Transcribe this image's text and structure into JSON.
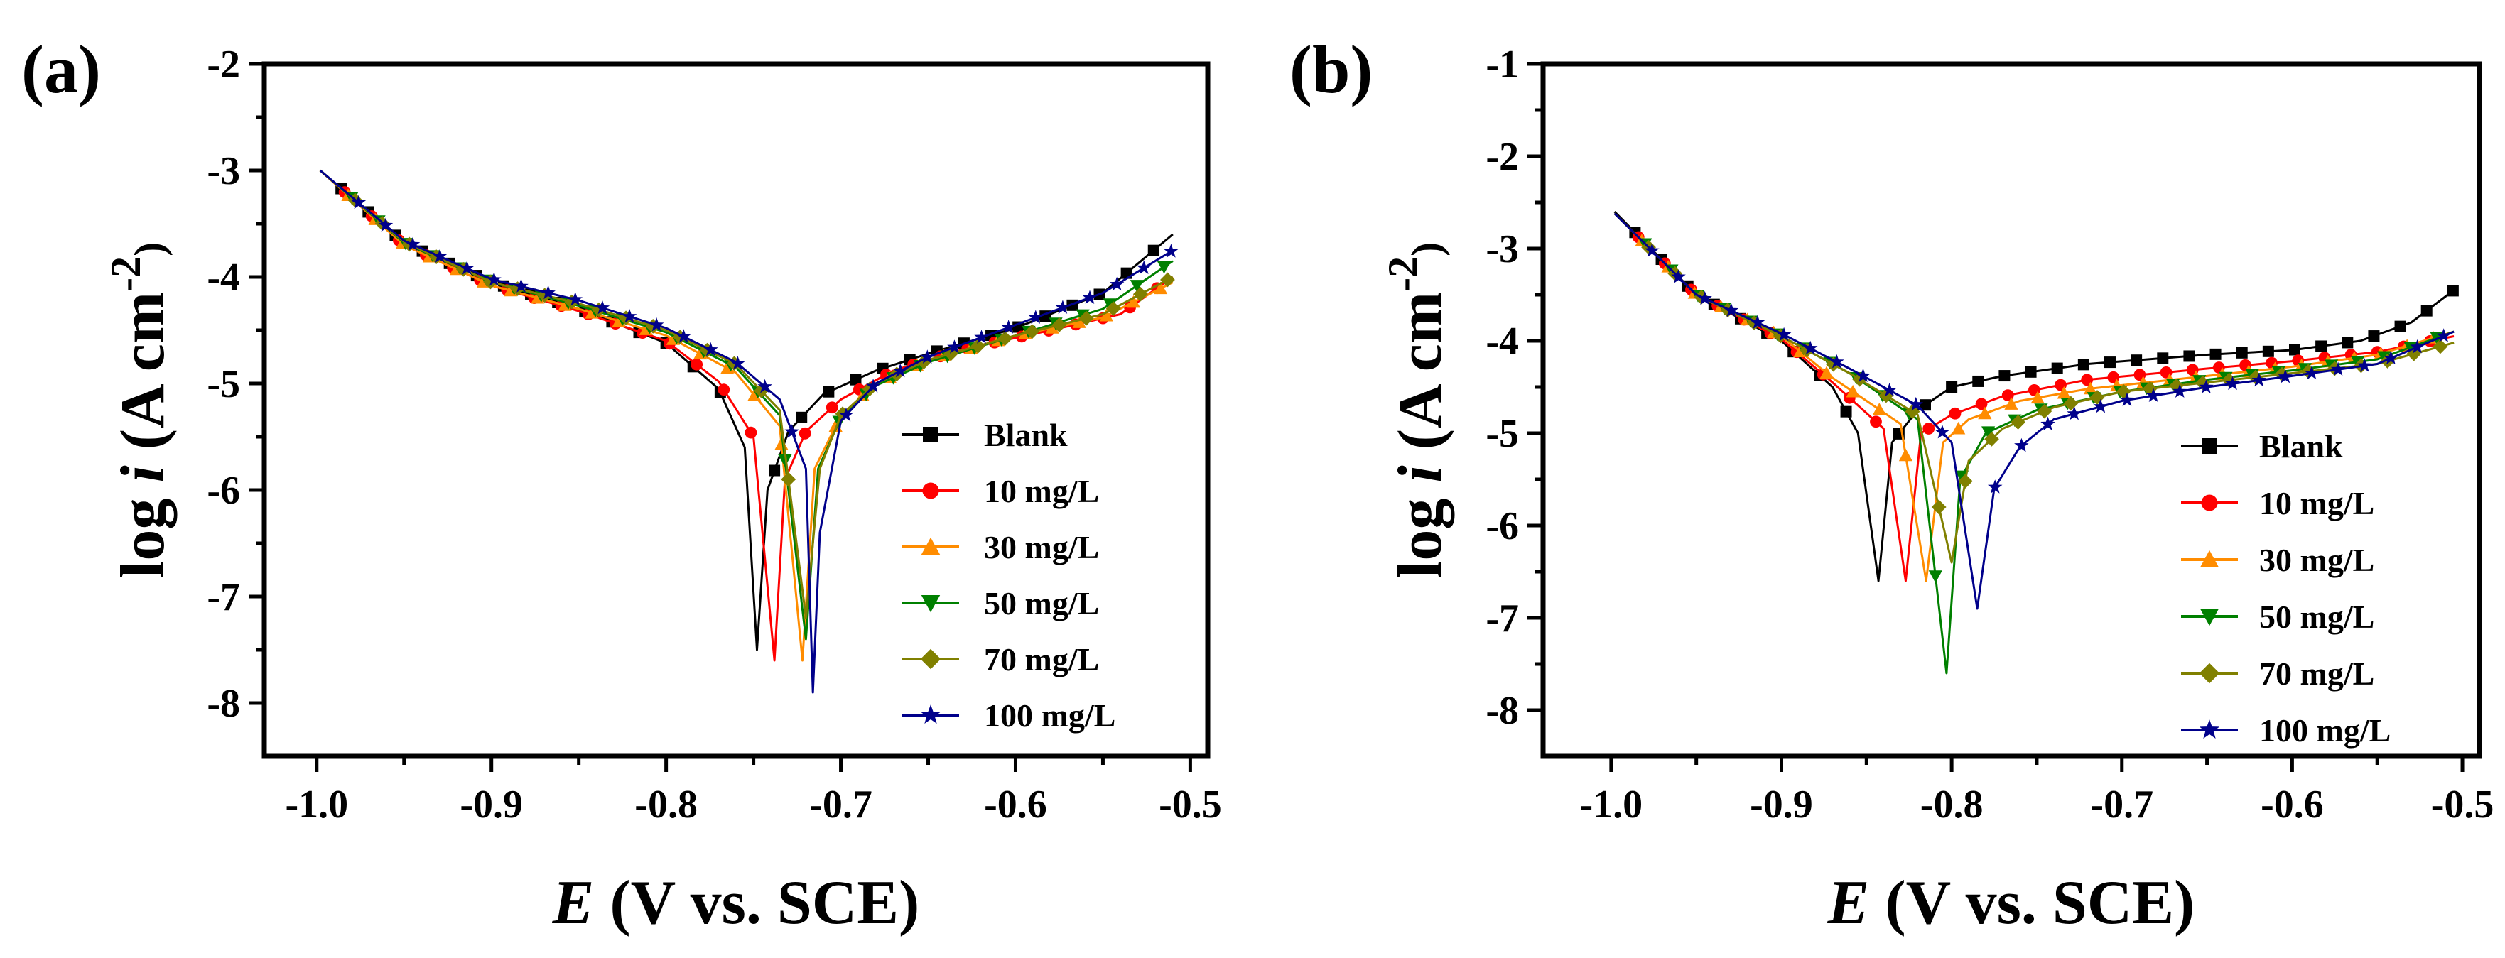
{
  "chart_data": [
    {
      "type": "line",
      "panel_label": "(a)",
      "xlabel_var": "E",
      "xlabel_rest": " (V vs. SCE)",
      "ylabel_a": "log ",
      "ylabel_var": "i",
      "ylabel_b": " (A cm",
      "ylabel_sup": "-2",
      "ylabel_c": ")",
      "xlim": [
        -1.03,
        -0.49
      ],
      "ylim": [
        -8.5,
        -2
      ],
      "xticks": [
        -1.0,
        -0.9,
        -0.8,
        -0.7,
        -0.6,
        -0.5
      ],
      "xtick_labels": [
        "-1.0",
        "-0.9",
        "-0.8",
        "-0.7",
        "-0.6",
        "-0.5"
      ],
      "yticks": [
        -2,
        -3,
        -4,
        -5,
        -6,
        -7,
        -8
      ],
      "ytick_labels": [
        "-2",
        "-3",
        "-4",
        "-5",
        "-6",
        "-7",
        "-8"
      ],
      "legend_position": "right",
      "series": [
        {
          "name": "Blank",
          "color": "#000000",
          "marker": "square",
          "ecorr": -0.748,
          "min_log_i": -7.5,
          "anodic_end": -3.6,
          "curve": [
            [
              -0.998,
              -3.0
            ],
            [
              -0.95,
              -3.68
            ],
            [
              -0.9,
              -4.05
            ],
            [
              -0.85,
              -4.3
            ],
            [
              -0.8,
              -4.62
            ],
            [
              -0.77,
              -5.05
            ],
            [
              -0.755,
              -5.6
            ],
            [
              -0.748,
              -7.5
            ],
            [
              -0.742,
              -6.0
            ],
            [
              -0.73,
              -5.45
            ],
            [
              -0.71,
              -5.1
            ],
            [
              -0.68,
              -4.88
            ],
            [
              -0.65,
              -4.72
            ],
            [
              -0.6,
              -4.48
            ],
            [
              -0.55,
              -4.15
            ],
            [
              -0.51,
              -3.6
            ]
          ]
        },
        {
          "name": "10 mg/L",
          "color": "#ff0000",
          "marker": "circle",
          "ecorr": -0.738,
          "min_log_i": -7.6,
          "anodic_end": -4.0,
          "curve": [
            [
              -0.998,
              -3.0
            ],
            [
              -0.95,
              -3.7
            ],
            [
              -0.9,
              -4.08
            ],
            [
              -0.85,
              -4.32
            ],
            [
              -0.8,
              -4.6
            ],
            [
              -0.77,
              -4.98
            ],
            [
              -0.75,
              -5.5
            ],
            [
              -0.738,
              -7.6
            ],
            [
              -0.732,
              -5.9
            ],
            [
              -0.72,
              -5.45
            ],
            [
              -0.7,
              -5.15
            ],
            [
              -0.67,
              -4.88
            ],
            [
              -0.63,
              -4.68
            ],
            [
              -0.58,
              -4.5
            ],
            [
              -0.54,
              -4.35
            ],
            [
              -0.51,
              -4.0
            ]
          ]
        },
        {
          "name": "30 mg/L",
          "color": "#ff8c00",
          "marker": "triangle-up",
          "ecorr": -0.722,
          "min_log_i": -7.6,
          "anodic_end": -4.05,
          "curve": [
            [
              -0.998,
              -3.0
            ],
            [
              -0.95,
              -3.7
            ],
            [
              -0.9,
              -4.08
            ],
            [
              -0.85,
              -4.3
            ],
            [
              -0.8,
              -4.55
            ],
            [
              -0.76,
              -4.9
            ],
            [
              -0.735,
              -5.4
            ],
            [
              -0.722,
              -7.6
            ],
            [
              -0.715,
              -5.8
            ],
            [
              -0.7,
              -5.3
            ],
            [
              -0.68,
              -5.0
            ],
            [
              -0.65,
              -4.78
            ],
            [
              -0.6,
              -4.55
            ],
            [
              -0.55,
              -4.38
            ],
            [
              -0.51,
              -4.05
            ]
          ]
        },
        {
          "name": "50 mg/L",
          "color": "#008000",
          "marker": "triangle-down",
          "ecorr": -0.72,
          "min_log_i": -7.4,
          "anodic_end": -3.85,
          "curve": [
            [
              -0.998,
              -3.0
            ],
            [
              -0.95,
              -3.68
            ],
            [
              -0.9,
              -4.05
            ],
            [
              -0.85,
              -4.27
            ],
            [
              -0.8,
              -4.52
            ],
            [
              -0.76,
              -4.85
            ],
            [
              -0.735,
              -5.3
            ],
            [
              -0.72,
              -7.4
            ],
            [
              -0.713,
              -5.8
            ],
            [
              -0.7,
              -5.32
            ],
            [
              -0.68,
              -5.02
            ],
            [
              -0.65,
              -4.8
            ],
            [
              -0.6,
              -4.55
            ],
            [
              -0.55,
              -4.3
            ],
            [
              -0.51,
              -3.85
            ]
          ]
        },
        {
          "name": "70 mg/L",
          "color": "#808000",
          "marker": "diamond",
          "ecorr": -0.72,
          "min_log_i": -7.2,
          "anodic_end": -4.0,
          "curve": [
            [
              -0.998,
              -3.0
            ],
            [
              -0.95,
              -3.67
            ],
            [
              -0.9,
              -4.05
            ],
            [
              -0.85,
              -4.25
            ],
            [
              -0.8,
              -4.5
            ],
            [
              -0.76,
              -4.82
            ],
            [
              -0.735,
              -5.25
            ],
            [
              -0.72,
              -7.2
            ],
            [
              -0.712,
              -5.8
            ],
            [
              -0.7,
              -5.3
            ],
            [
              -0.68,
              -5.0
            ],
            [
              -0.65,
              -4.78
            ],
            [
              -0.6,
              -4.55
            ],
            [
              -0.55,
              -4.35
            ],
            [
              -0.51,
              -4.0
            ]
          ]
        },
        {
          "name": "100 mg/L",
          "color": "#00008b",
          "marker": "star",
          "ecorr": -0.716,
          "min_log_i": -7.9,
          "anodic_end": -3.75,
          "curve": [
            [
              -0.998,
              -3.0
            ],
            [
              -0.95,
              -3.66
            ],
            [
              -0.9,
              -4.02
            ],
            [
              -0.85,
              -4.22
            ],
            [
              -0.8,
              -4.48
            ],
            [
              -0.76,
              -4.8
            ],
            [
              -0.735,
              -5.15
            ],
            [
              -0.72,
              -5.8
            ],
            [
              -0.716,
              -7.9
            ],
            [
              -0.712,
              -6.4
            ],
            [
              -0.7,
              -5.35
            ],
            [
              -0.68,
              -5.0
            ],
            [
              -0.65,
              -4.75
            ],
            [
              -0.6,
              -4.45
            ],
            [
              -0.55,
              -4.15
            ],
            [
              -0.51,
              -3.75
            ]
          ]
        }
      ]
    },
    {
      "type": "line",
      "panel_label": "(b)",
      "xlabel_var": "E",
      "xlabel_rest": " (V vs. SCE)",
      "ylabel_a": "log ",
      "ylabel_var": "i",
      "ylabel_b": " (A cm",
      "ylabel_sup": "-2",
      "ylabel_c": ")",
      "xlim": [
        -1.04,
        -0.49
      ],
      "ylim": [
        -8.5,
        -1
      ],
      "xticks": [
        -1.0,
        -0.9,
        -0.8,
        -0.7,
        -0.6,
        -0.5
      ],
      "xtick_labels": [
        "-1.0",
        "-0.9",
        "-0.8",
        "-0.7",
        "-0.6",
        "-0.5"
      ],
      "yticks": [
        -1,
        -2,
        -3,
        -4,
        -5,
        -6,
        -7,
        -8
      ],
      "ytick_labels": [
        "-1",
        "-2",
        "-3",
        "-4",
        "-5",
        "-6",
        "-7",
        "-8"
      ],
      "legend_position": "bottom-right",
      "series": [
        {
          "name": "Blank",
          "color": "#000000",
          "marker": "square",
          "ecorr": -0.843,
          "min_log_i": -6.6,
          "anodic_end": -3.45,
          "curve": [
            [
              -0.998,
              -2.6
            ],
            [
              -0.95,
              -3.5
            ],
            [
              -0.9,
              -4.0
            ],
            [
              -0.87,
              -4.5
            ],
            [
              -0.855,
              -5.0
            ],
            [
              -0.843,
              -6.6
            ],
            [
              -0.835,
              -5.1
            ],
            [
              -0.82,
              -4.75
            ],
            [
              -0.8,
              -4.5
            ],
            [
              -0.77,
              -4.38
            ],
            [
              -0.72,
              -4.25
            ],
            [
              -0.65,
              -4.15
            ],
            [
              -0.6,
              -4.1
            ],
            [
              -0.56,
              -4.0
            ],
            [
              -0.53,
              -3.8
            ],
            [
              -0.505,
              -3.45
            ]
          ]
        },
        {
          "name": "10 mg/L",
          "color": "#ff0000",
          "marker": "circle",
          "ecorr": -0.827,
          "min_log_i": -6.6,
          "anodic_end": -3.95,
          "curve": [
            [
              -0.998,
              -2.62
            ],
            [
              -0.95,
              -3.5
            ],
            [
              -0.9,
              -3.98
            ],
            [
              -0.87,
              -4.45
            ],
            [
              -0.84,
              -4.95
            ],
            [
              -0.827,
              -6.6
            ],
            [
              -0.818,
              -5.0
            ],
            [
              -0.8,
              -4.8
            ],
            [
              -0.77,
              -4.6
            ],
            [
              -0.72,
              -4.42
            ],
            [
              -0.65,
              -4.3
            ],
            [
              -0.6,
              -4.22
            ],
            [
              -0.55,
              -4.12
            ],
            [
              -0.505,
              -3.95
            ]
          ]
        },
        {
          "name": "30 mg/L",
          "color": "#ff8c00",
          "marker": "triangle-up",
          "ecorr": -0.815,
          "min_log_i": -6.6,
          "anodic_end": -3.9,
          "curve": [
            [
              -0.998,
              -2.62
            ],
            [
              -0.95,
              -3.5
            ],
            [
              -0.9,
              -3.95
            ],
            [
              -0.87,
              -4.4
            ],
            [
              -0.83,
              -4.9
            ],
            [
              -0.815,
              -6.6
            ],
            [
              -0.805,
              -5.1
            ],
            [
              -0.79,
              -4.85
            ],
            [
              -0.76,
              -4.65
            ],
            [
              -0.72,
              -4.52
            ],
            [
              -0.65,
              -4.38
            ],
            [
              -0.6,
              -4.28
            ],
            [
              -0.55,
              -4.15
            ],
            [
              -0.505,
              -3.9
            ]
          ]
        },
        {
          "name": "50 mg/L",
          "color": "#008000",
          "marker": "triangle-down",
          "ecorr": -0.803,
          "min_log_i": -7.6,
          "anodic_end": -3.9,
          "curve": [
            [
              -0.998,
              -2.62
            ],
            [
              -0.95,
              -3.5
            ],
            [
              -0.9,
              -3.95
            ],
            [
              -0.86,
              -4.35
            ],
            [
              -0.82,
              -4.85
            ],
            [
              -0.803,
              -7.6
            ],
            [
              -0.795,
              -5.5
            ],
            [
              -0.78,
              -5.0
            ],
            [
              -0.75,
              -4.75
            ],
            [
              -0.7,
              -4.55
            ],
            [
              -0.65,
              -4.42
            ],
            [
              -0.6,
              -4.32
            ],
            [
              -0.55,
              -4.2
            ],
            [
              -0.505,
              -3.9
            ]
          ]
        },
        {
          "name": "70 mg/L",
          "color": "#808000",
          "marker": "diamond",
          "ecorr": -0.8,
          "min_log_i": -6.4,
          "anodic_end": -4.02,
          "curve": [
            [
              -0.998,
              -2.62
            ],
            [
              -0.95,
              -3.5
            ],
            [
              -0.9,
              -3.95
            ],
            [
              -0.86,
              -4.35
            ],
            [
              -0.82,
              -4.8
            ],
            [
              -0.8,
              -6.4
            ],
            [
              -0.79,
              -5.3
            ],
            [
              -0.77,
              -4.95
            ],
            [
              -0.74,
              -4.72
            ],
            [
              -0.7,
              -4.55
            ],
            [
              -0.65,
              -4.45
            ],
            [
              -0.6,
              -4.35
            ],
            [
              -0.55,
              -4.25
            ],
            [
              -0.505,
              -4.02
            ]
          ]
        },
        {
          "name": "100 mg/L",
          "color": "#00008b",
          "marker": "star",
          "ecorr": -0.785,
          "min_log_i": -6.9,
          "anodic_end": -3.9,
          "curve": [
            [
              -0.998,
              -2.62
            ],
            [
              -0.95,
              -3.5
            ],
            [
              -0.9,
              -3.92
            ],
            [
              -0.86,
              -4.3
            ],
            [
              -0.82,
              -4.7
            ],
            [
              -0.8,
              -5.1
            ],
            [
              -0.785,
              -6.9
            ],
            [
              -0.775,
              -5.6
            ],
            [
              -0.76,
              -5.15
            ],
            [
              -0.74,
              -4.85
            ],
            [
              -0.7,
              -4.65
            ],
            [
              -0.65,
              -4.5
            ],
            [
              -0.6,
              -4.38
            ],
            [
              -0.55,
              -4.25
            ],
            [
              -0.505,
              -3.9
            ]
          ]
        }
      ]
    }
  ]
}
